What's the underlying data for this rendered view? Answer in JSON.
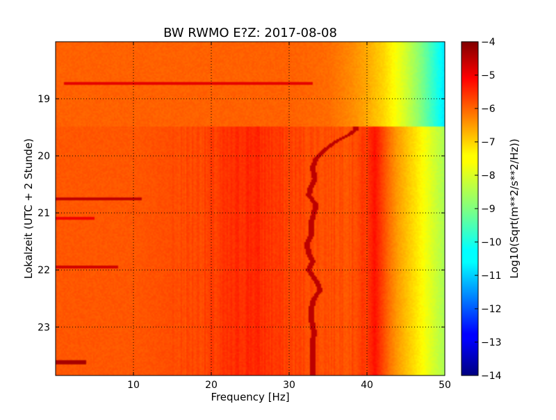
{
  "chart_data": {
    "type": "heatmap",
    "title": "BW RWMO E?Z: 2017-08-08",
    "xlabel": "Frequency [Hz]",
    "ylabel": "Lokalzeit (UTC + 2 Stunde)",
    "xlim": [
      0,
      50
    ],
    "ylim": [
      18.0,
      23.85
    ],
    "y_inverted": true,
    "x_ticks": [
      10,
      20,
      30,
      40,
      50
    ],
    "y_ticks": [
      19,
      20,
      21,
      22,
      23
    ],
    "grid": true,
    "colormap": "jet",
    "colorbar": {
      "label": "Log10(Sqrt(m**2/s**2/Hz))",
      "range": [
        -14,
        -4
      ],
      "ticks": [
        -4,
        -5,
        -6,
        -7,
        -8,
        -9,
        -10,
        -11,
        -12,
        -13,
        -14
      ]
    },
    "data_gap_start_hour": 19.48,
    "spectral_profile": {
      "frequency_hz": [
        0,
        5,
        10,
        15,
        20,
        25,
        30,
        35,
        38,
        40,
        41,
        42,
        43,
        44,
        45,
        46,
        47,
        48,
        49,
        50
      ],
      "segment_1_level": [
        -6.2,
        -6.2,
        -6.2,
        -6.2,
        -6.2,
        -6.2,
        -6.2,
        -6.3,
        -6.6,
        -6.9,
        -7.1,
        -7.3,
        -7.6,
        -7.9,
        -8.2,
        -8.6,
        -9.0,
        -9.5,
        -10.0,
        -10.5
      ],
      "segment_2_level": [
        -6.1,
        -6.1,
        -6.1,
        -6.0,
        -5.9,
        -5.6,
        -5.9,
        -6.0,
        -6.0,
        -5.8,
        -5.4,
        -5.9,
        -6.4,
        -6.8,
        -7.1,
        -7.4,
        -7.7,
        -8.0,
        -8.3,
        -8.6
      ]
    },
    "strong_horizontal_lines": [
      {
        "hour": 18.73,
        "f_from": 1,
        "f_to": 33,
        "level": -5.0
      },
      {
        "hour": 20.76,
        "f_from": 0,
        "f_to": 11,
        "level": -4.6
      },
      {
        "hour": 21.1,
        "f_from": 0,
        "f_to": 5,
        "level": -5.1
      },
      {
        "hour": 21.95,
        "f_from": 0,
        "f_to": 8,
        "level": -4.8
      },
      {
        "hour": 23.62,
        "f_from": 0,
        "f_to": 4,
        "level": -4.4
      }
    ],
    "tremor_track": {
      "hour": [
        19.55,
        19.65,
        19.75,
        19.9,
        20.05,
        20.2,
        20.4,
        20.55,
        20.7,
        20.85,
        21.0,
        21.2,
        21.4,
        21.55,
        21.7,
        21.85,
        22.0,
        22.2,
        22.35,
        22.5,
        22.7,
        22.9,
        23.1,
        23.3,
        23.5,
        23.7,
        23.85
      ],
      "frequency_hz": [
        38.5,
        37.5,
        36.0,
        34.5,
        33.5,
        33.0,
        33.3,
        32.8,
        32.5,
        33.5,
        33.2,
        32.8,
        32.8,
        32.3,
        32.5,
        33.0,
        32.5,
        33.5,
        34.0,
        33.2,
        32.8,
        32.9,
        33.2,
        33.0,
        33.0,
        33.0,
        33.0
      ],
      "level": -4.6
    }
  }
}
